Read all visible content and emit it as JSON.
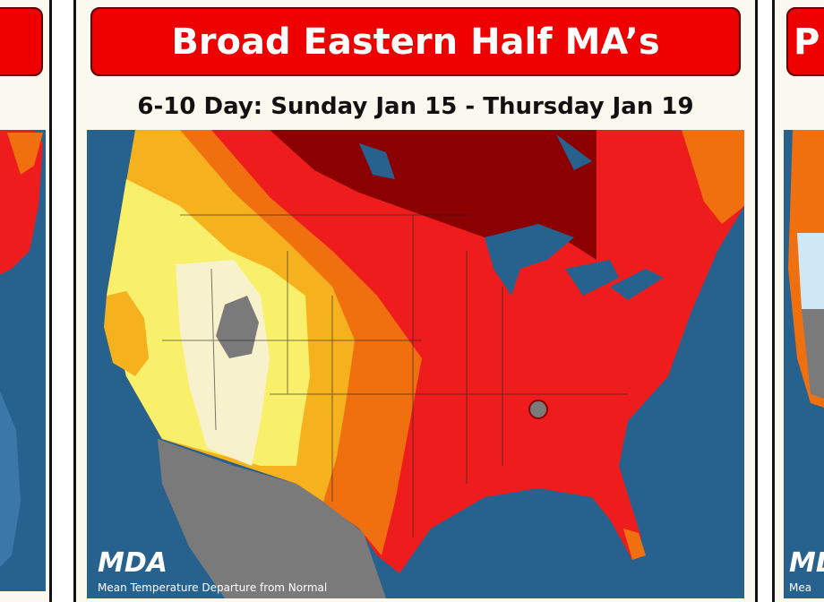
{
  "header": {
    "title": "Broad Eastern Half MA’s",
    "subtitle": "6-10 Day: Sunday Jan 15 - Thursday Jan 19"
  },
  "map": {
    "logo": "MDA",
    "caption": "Mean Temperature Departure from Normal"
  },
  "right_panel": {
    "title_fragment": "P",
    "logo_fragment": "MDA",
    "caption_fragment": "Mea"
  }
}
